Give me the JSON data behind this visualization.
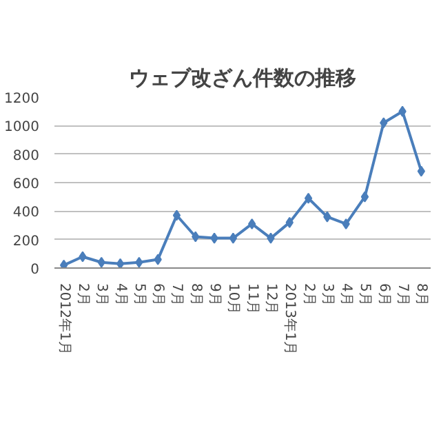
{
  "chart_data": {
    "type": "line",
    "title": "ウェブ改ざん件数の推移",
    "categories": [
      "2012年1月",
      "2月",
      "3月",
      "4月",
      "5月",
      "6月",
      "7月",
      "8月",
      "9月",
      "10月",
      "11月",
      "12月",
      "2013年1月",
      "2月",
      "3月",
      "4月",
      "5月",
      "6月",
      "7月",
      "8月"
    ],
    "series": [
      {
        "color": "#4a7ebb",
        "values": [
          20,
          80,
          40,
          30,
          40,
          60,
          370,
          220,
          210,
          210,
          310,
          210,
          320,
          490,
          360,
          310,
          500,
          1020,
          1100,
          680
        ]
      }
    ],
    "ylim": [
      0,
      1200
    ],
    "yticks": [
      0,
      200,
      400,
      600,
      800,
      1000,
      1200
    ],
    "grid": "y",
    "marker": "diamond",
    "line_style": "solid"
  }
}
